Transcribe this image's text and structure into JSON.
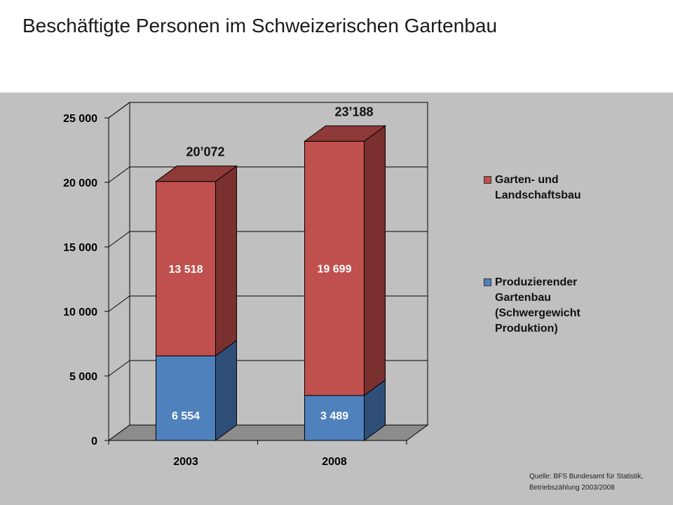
{
  "title": "Beschäftigte Personen im Schweizerischen Gartenbau",
  "source": "Quelle: BFS Bundesamt für Statistik,\nBetriebszählung 2003/2008",
  "colors": {
    "red_front": "#c0504d",
    "red_side": "#7b3030",
    "red_top": "#8e3a38",
    "blue_front": "#4f81bd",
    "blue_side": "#2f4f78",
    "blue_top": "#3a5f8e",
    "background": "#c0c0c0"
  },
  "chart_data": {
    "type": "bar",
    "stacked": true,
    "three_d": true,
    "categories": [
      "2003",
      "2008"
    ],
    "series": [
      {
        "name": "Produzierender Gartenbau (Schwergewicht Produktion)",
        "values": [
          6554,
          3489
        ],
        "labels": [
          "6 554",
          "3 489"
        ],
        "color": "#4f81bd"
      },
      {
        "name": "Garten- und Landschaftsbau",
        "values": [
          13518,
          19699
        ],
        "labels": [
          "13 518",
          "19 699"
        ],
        "color": "#c0504d"
      }
    ],
    "totals": [
      20072,
      23188
    ],
    "total_labels": [
      "20’072",
      "23’188"
    ],
    "y_ticks": [
      0,
      5000,
      10000,
      15000,
      20000,
      25000
    ],
    "y_tick_labels": [
      "0",
      "5 000",
      "10 000",
      "15 000",
      "20 000",
      "25 000"
    ],
    "ylim": [
      0,
      25000
    ],
    "grid": true,
    "legend_position": "right"
  },
  "legend": [
    {
      "label": "Garten- und\nLandschaftsbau",
      "color": "#c0504d"
    },
    {
      "label": "Produzierender\nGartenbau\n(Schwergewicht\nProduktion)",
      "color": "#4f81bd"
    }
  ]
}
